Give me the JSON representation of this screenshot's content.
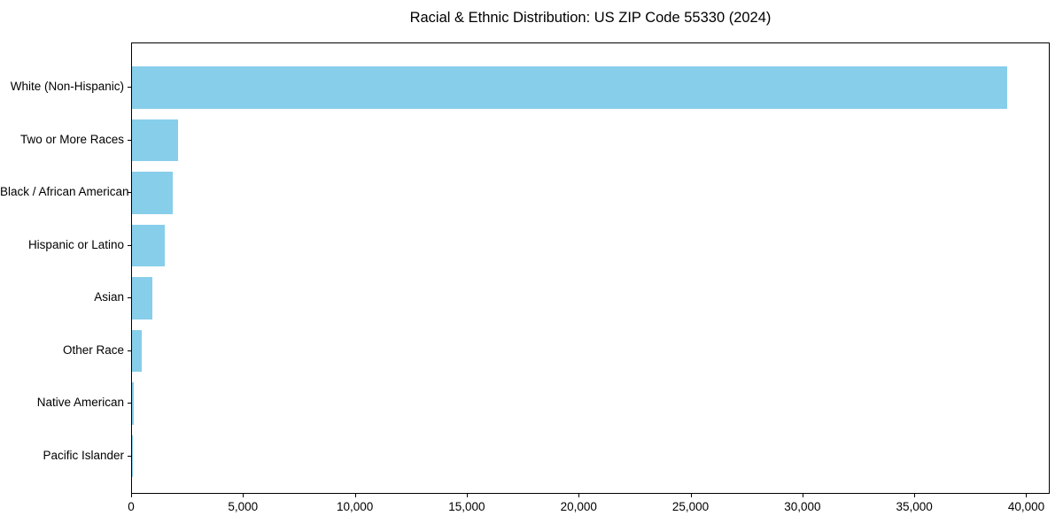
{
  "chart_data": {
    "type": "bar",
    "orientation": "horizontal",
    "title": "Racial & Ethnic Distribution: US ZIP Code 55330 (2024)",
    "categories": [
      "White (Non-Hispanic)",
      "Two or More Races",
      "Black / African American",
      "Hispanic or Latino",
      "Asian",
      "Other Race",
      "Native American",
      "Pacific Islander"
    ],
    "values": [
      39100,
      2050,
      1820,
      1460,
      910,
      430,
      60,
      15
    ],
    "xlabel": "",
    "ylabel": "",
    "xlim": [
      0,
      41050
    ],
    "x_ticks": [
      0,
      5000,
      10000,
      15000,
      20000,
      25000,
      30000,
      35000,
      40000
    ],
    "x_tick_labels": [
      "0",
      "5,000",
      "10,000",
      "15,000",
      "20,000",
      "25,000",
      "30,000",
      "35,000",
      "40,000"
    ],
    "bar_color": "#87CEEB",
    "axis_color": "#000000",
    "text_color": "#000000",
    "grid": false,
    "legend": false
  }
}
